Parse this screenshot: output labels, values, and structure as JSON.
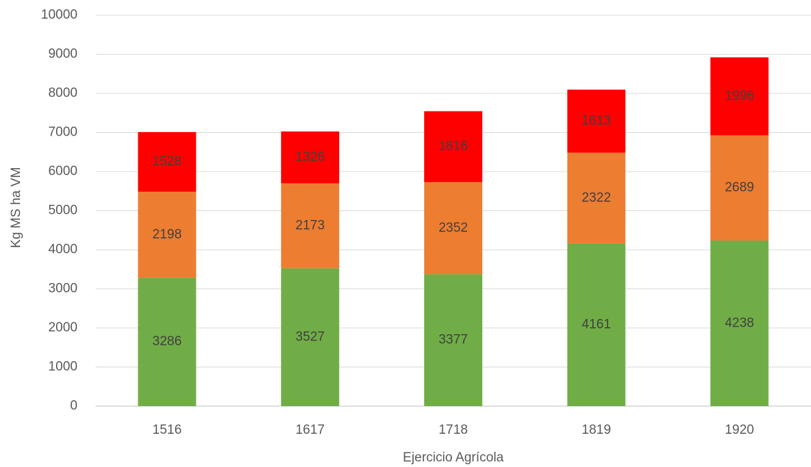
{
  "chart_data": {
    "type": "stacked_bar",
    "categories": [
      "1516",
      "1617",
      "1718",
      "1819",
      "1920"
    ],
    "series": [
      {
        "color": "#70ad47",
        "values": [
          3286,
          3527,
          3377,
          4161,
          4238
        ]
      },
      {
        "color": "#ed7d31",
        "values": [
          2198,
          2173,
          2352,
          2322,
          2689
        ]
      },
      {
        "color": "#ff0000",
        "values": [
          1528,
          1326,
          1816,
          1613,
          1996
        ]
      }
    ],
    "x_label": "Ejercicio Agrícola",
    "y_label": "Kg MS ha VM",
    "ylim": [
      0,
      10000
    ],
    "yticks": [
      0,
      1000,
      2000,
      3000,
      4000,
      5000,
      6000,
      7000,
      8000,
      9000,
      10000
    ],
    "grid": true
  }
}
